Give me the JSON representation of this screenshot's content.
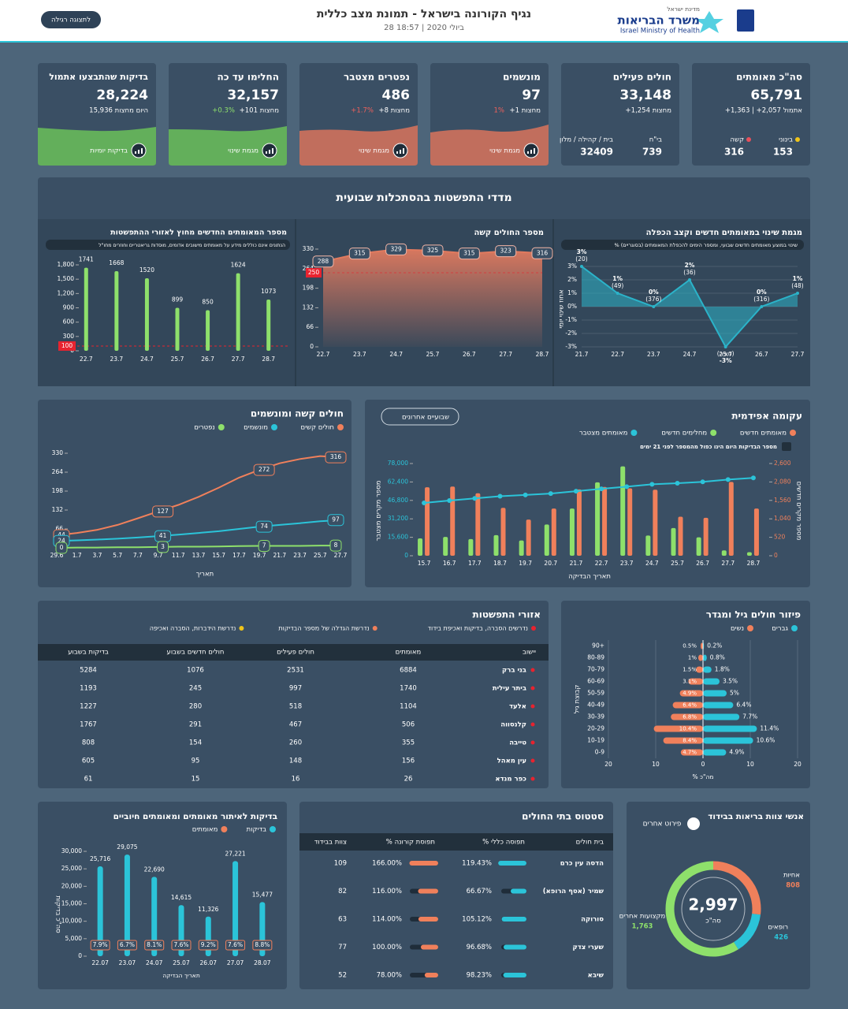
{
  "header": {
    "state": "מדינת ישראל",
    "ministry": "משרד הבריאות",
    "ministry_en": "Israel Ministry of Health",
    "title": "נגיף הקורונה בישראל - תמונת מצב כללית",
    "subtitle": "28 ביולי 2020 | 18:57",
    "button": "לתצוגה רגילה"
  },
  "kpis": [
    {
      "title": "סה\"כ מאומתים",
      "value": "65,791",
      "delta": "+1,363 | +2,057 אתמול",
      "items": [
        {
          "label": "בינוני",
          "value": "153",
          "color": "#f0c419"
        },
        {
          "label": "קשה",
          "value": "316",
          "color": "#e8505b"
        }
      ]
    },
    {
      "title": "חולים פעילים",
      "value": "33,148",
      "delta": "+1,254 מחצות",
      "items": [
        {
          "label": "בי\"ח",
          "value": "739"
        },
        {
          "label": "בית / קהילה / מלון",
          "value": "32409"
        }
      ]
    },
    {
      "title": "מונשמים",
      "value": "97",
      "delta": "+1 מחצות",
      "pct": "1%",
      "pct_color": "#f0605b",
      "button": "מגמת שינוי",
      "spark": "#d9735c"
    },
    {
      "title": "נפטרים מצטבר",
      "value": "486",
      "delta": "+8 מחצות",
      "pct": "+1.7%",
      "pct_color": "#f0605b",
      "button": "מגמת שינוי",
      "spark": "#d9735c"
    },
    {
      "title": "החלימו עד כה",
      "value": "32,157",
      "delta": "+101 מחצות",
      "pct": "+0.3%",
      "pct_color": "#8ee06b",
      "button": "מגמת שינוי",
      "spark": "#6bbf59"
    },
    {
      "title": "בדיקות שהתבצעו אתמול",
      "value": "28,224",
      "delta": "15,936 היום מחצות",
      "button": "בדיקות יומיות",
      "spark": "#6bbf59"
    }
  ],
  "spread_title": "מדדי התפשטות בהסתכלות שבועית",
  "chart_data": [
    {
      "type": "area",
      "title": "מגמת שינוי במאומתים חדשים וקצב הכפלה",
      "note": "% שינוי במוצע מאומתים חדשים שבועי, ומספר הימים להכפלת המאומתים (בסוגריים)",
      "y_label": "אחוז שינוי יומי",
      "categories": [
        "21.7",
        "22.7",
        "23.7",
        "24.7",
        "25.7",
        "26.7",
        "27.7"
      ],
      "values": [
        3,
        1,
        0,
        2,
        -3,
        0,
        1
      ],
      "value_labels": [
        "3%",
        "1%",
        "0%",
        "2%",
        "-3%",
        "0%",
        "1%"
      ],
      "doubling": [
        "(20)",
        "(49)",
        "(376)",
        "(36)",
        "(חציה)",
        "(316)",
        "(48)"
      ],
      "color": "#2bb3c9",
      "ylim": [
        -3,
        3
      ],
      "yticks": [
        {
          "value": -3,
          "label": "-3%"
        },
        {
          "value": -2,
          "label": "-2%"
        },
        {
          "value": -1,
          "label": "-1%"
        },
        {
          "value": 0,
          "label": "0%"
        },
        {
          "value": 1,
          "label": "1%"
        },
        {
          "value": 2,
          "label": "2%"
        },
        {
          "value": 3,
          "label": "3%"
        }
      ]
    },
    {
      "type": "area",
      "title": "מספר החולים קשה",
      "categories": [
        "22.7",
        "23.7",
        "24.7",
        "25.7",
        "26.7",
        "27.7",
        "28.7"
      ],
      "values": [
        288,
        315,
        329,
        325,
        315,
        323,
        316
      ],
      "color": "#e07a5f",
      "ylim": [
        0,
        330
      ],
      "yticks": [
        0,
        66,
        132,
        198,
        264,
        330
      ],
      "threshold": 250
    },
    {
      "type": "bar",
      "title": "מספר המאומתים החדשים מחוץ לאזורי ההתפשטות",
      "note": "הנתונים אינם כוללים מידע על מאומתים מישובים אדומים, מוסדות גריאטריים וחוזרים מחו\"ל",
      "categories": [
        "22.7",
        "23.7",
        "24.7",
        "25.7",
        "26.7",
        "27.7",
        "28.7"
      ],
      "values": [
        1741,
        1668,
        1520,
        899,
        850,
        1624,
        1073
      ],
      "color": "#8ee06b",
      "ylim": [
        0,
        1800
      ],
      "yticks": [
        0,
        300,
        600,
        900,
        {
          "value": 1200,
          "label": "1,200"
        },
        {
          "value": 1500,
          "label": "1,500"
        },
        {
          "value": 1800,
          "label": "1,800"
        }
      ],
      "threshold": 100
    },
    {
      "type": "line",
      "title": "חולים קשה ומונשמים",
      "x_label": "תאריך",
      "categories": [
        "29.6",
        "1.7",
        "3.7",
        "5.7",
        "7.7",
        "9.7",
        "11.7",
        "13.7",
        "15.7",
        "17.7",
        "19.7",
        "21.7",
        "23.7",
        "25.7",
        "27.7"
      ],
      "series": [
        {
          "name": "חולים קשים",
          "color": "#f0805b",
          "values": [
            44,
            52,
            63,
            80,
            103,
            127,
            150,
            178,
            210,
            245,
            272,
            295,
            310,
            320,
            316
          ]
        },
        {
          "name": "מונשמים",
          "color": "#2bc4d9",
          "values": [
            24,
            26,
            29,
            32,
            36,
            41,
            46,
            52,
            58,
            66,
            74,
            80,
            86,
            93,
            97
          ]
        },
        {
          "name": "נפטרים",
          "color": "#8ee06b",
          "values": [
            0,
            1,
            1,
            2,
            2,
            3,
            4,
            4,
            5,
            6,
            7,
            7,
            7,
            8,
            8
          ]
        }
      ],
      "ylim": [
        0,
        330
      ],
      "yticks": [
        0,
        66,
        132,
        198,
        264,
        330
      ]
    },
    {
      "type": "combo",
      "title": "עקומה אפידמית",
      "dropdown": "שבועיים אחרונים",
      "note": "מספר הבדיקות היום הינו כפול מהמספר לפני 21 ימים",
      "x_label": "תאריך הבדיקה",
      "y_label": "מספר מקרים מצטבר",
      "y2_label": "מספר מקרים חדשים",
      "categories": [
        "15.7",
        "16.7",
        "17.7",
        "18.7",
        "19.7",
        "20.7",
        "21.7",
        "22.7",
        "23.7",
        "24.7",
        "25.7",
        "26.7",
        "27.7",
        "28.7"
      ],
      "series": [
        {
          "name": "מאומתים חדשים",
          "color": "#f0805b",
          "axis": "y2",
          "values": [
            1930,
            1950,
            1760,
            1350,
            1020,
            1330,
            1870,
            1940,
            1900,
            1860,
            1100,
            1070,
            2080,
            1330
          ]
        },
        {
          "name": "מחלימים חדשים",
          "color": "#8ee06b",
          "axis": "y2",
          "values": [
            490,
            530,
            470,
            580,
            430,
            880,
            1330,
            2070,
            2520,
            570,
            780,
            520,
            150,
            100
          ]
        },
        {
          "name": "מאומתים מצטבר",
          "color": "#2bc4d9",
          "values": [
            44700,
            46700,
            48500,
            50300,
            51400,
            52600,
            54600,
            56600,
            58400,
            60400,
            61300,
            62500,
            64400,
            65800
          ]
        }
      ],
      "ylim": [
        0,
        78000
      ],
      "yticks": [
        0,
        {
          "value": 15600,
          "label": "15,600"
        },
        {
          "value": 31200,
          "label": "31,200"
        },
        {
          "value": 46800,
          "label": "46,800"
        },
        {
          "value": 62400,
          "label": "62,400"
        },
        {
          "value": 78000,
          "label": "78,000"
        }
      ],
      "y2lim": [
        0,
        2600
      ],
      "y2ticks": [
        0,
        520,
        {
          "value": 1040,
          "label": "1,040"
        },
        {
          "value": 1560,
          "label": "1,560"
        },
        {
          "value": 2080,
          "label": "2,080"
        },
        {
          "value": 2600,
          "label": "2,600"
        }
      ]
    },
    {
      "type": "butterfly",
      "title": "פיזור חולים גיל ומגדר",
      "x_label": "% מה\"כ",
      "y_label": "קבוצת גיל",
      "categories": [
        "0-9",
        "10-19",
        "20-29",
        "30-39",
        "40-49",
        "50-59",
        "60-69",
        "70-79",
        "80-89",
        "90+"
      ],
      "series": [
        {
          "name": "גברים",
          "color": "#2bc4d9",
          "values": [
            4.9,
            10.6,
            11.4,
            7.7,
            6.4,
            5,
            3.5,
            1.8,
            0.8,
            0.2
          ],
          "value_labels": [
            "4.9%",
            "10.6%",
            "11.4%",
            "7.7%",
            "6.4%",
            "5%",
            "3.5%",
            "1.8%",
            "0.8%",
            "0.2%"
          ]
        },
        {
          "name": "נשים",
          "color": "#f0805b",
          "values": [
            4.7,
            8.4,
            10.4,
            6.8,
            6.4,
            4.9,
            3.1,
            1.5,
            1,
            0.5
          ],
          "value_labels": [
            "4.7%",
            "8.4%",
            "10.4%",
            "6.8%",
            "6.4%",
            "4.9%",
            "3.1%",
            "1.5%",
            "1%",
            "0.5%"
          ]
        }
      ],
      "xlim": [
        -20,
        20
      ],
      "xticks": [
        {
          "value": -20,
          "label": "20"
        },
        {
          "value": -10,
          "label": "10"
        },
        0,
        10,
        20
      ]
    },
    {
      "type": "bar",
      "title": "בדיקות לאיתור מאומתים ומאומתים חיוביים",
      "x_label": "תאריך הבדיקה",
      "y_label": "סה\"כ בדיקות",
      "categories": [
        "22.07",
        "23.07",
        "24.07",
        "25.07",
        "26.07",
        "27.07",
        "28.07"
      ],
      "series": [
        {
          "name": "בדיקות",
          "color": "#2bc4d9",
          "values": [
            25716,
            29075,
            22690,
            14615,
            11326,
            27221,
            15477
          ],
          "value_labels": [
            "25,716",
            "29,075",
            "22,690",
            "14,615",
            "11,326",
            "27,221",
            "15,477"
          ]
        },
        {
          "name": "מאומתים",
          "color": "#f0805b",
          "values": [
            7.9,
            6.7,
            8.1,
            7.6,
            9.2,
            7.6,
            8.8
          ],
          "value_labels": [
            "7.9%",
            "6.7%",
            "8.1%",
            "7.6%",
            "9.2%",
            "7.6%",
            "8.8%"
          ]
        }
      ],
      "ylim": [
        0,
        30000
      ],
      "yticks": [
        0,
        {
          "value": 5000,
          "label": "5,000"
        },
        {
          "value": 10000,
          "label": "10,000"
        },
        {
          "value": 15000,
          "label": "15,000"
        },
        {
          "value": 20000,
          "label": "20,000"
        },
        {
          "value": 25000,
          "label": "25,000"
        },
        {
          "value": 30000,
          "label": "30,000"
        }
      ]
    },
    {
      "type": "pie",
      "title": "אנשי צוות בריאות בבידוד",
      "total": "2,997",
      "total_label": "סה\"כ",
      "button": "פירוט אחרים",
      "categories": [
        "אחיות",
        "רופאים",
        "מקצועות אחרים"
      ],
      "values": [
        808,
        426,
        1763
      ],
      "value_labels": [
        "808",
        "426",
        "1,763"
      ],
      "colors": [
        "#f0805b",
        "#2bc4d9",
        "#8ee06b"
      ]
    }
  ],
  "spread_table": {
    "title": "אזורי התפשטות",
    "legend": [
      {
        "label": "נדרשים הסברה, בדיקות ואכיפת בידוד",
        "color": "#e8232f"
      },
      {
        "label": "נדרשת הגדלה של מספר הבדיקות",
        "color": "#f0805b"
      },
      {
        "label": "נדרשת הידברות, הסברה ואכיפה",
        "color": "#f0c419"
      }
    ],
    "columns": [
      "יישוב",
      "מאומתים",
      "חולים פעילים",
      "חולים חדשים בשבוע",
      "בדיקות בשבוע"
    ],
    "rows": [
      [
        "בני ברק",
        6884,
        2531,
        1076,
        5284
      ],
      [
        "ביתר עילית",
        1740,
        997,
        245,
        1193
      ],
      [
        "אלעד",
        1104,
        518,
        280,
        1227
      ],
      [
        "קלנסווה",
        506,
        467,
        291,
        1767
      ],
      [
        "טייבה",
        355,
        260,
        154,
        808
      ],
      [
        "עין מאהל",
        156,
        148,
        95,
        605
      ],
      [
        "כפר מנדא",
        26,
        16,
        15,
        61
      ]
    ]
  },
  "hospital_table": {
    "title": "סטטוס בתי החולים",
    "columns": [
      "בית חולים",
      "% תפוסה כללי",
      "% תפוסת קורונה",
      "צוות בבידוד"
    ],
    "rows": [
      {
        "name": "הדסה עין כרם",
        "general": 119.43,
        "general_label": "119.43%",
        "corona": 166,
        "corona_label": "166.00%",
        "staff": 109
      },
      {
        "name": "שמיר (אסף הרופא)",
        "general": 66.67,
        "general_label": "66.67%",
        "corona": 116,
        "corona_label": "116.00%",
        "staff": 82
      },
      {
        "name": "סורוקה",
        "general": 105.12,
        "general_label": "105.12%",
        "corona": 114,
        "corona_label": "114.00%",
        "staff": 63
      },
      {
        "name": "שערי צדק",
        "general": 96.68,
        "general_label": "96.68%",
        "corona": 100,
        "corona_label": "100.00%",
        "staff": 77
      },
      {
        "name": "שיבא",
        "general": 98.23,
        "general_label": "98.23%",
        "corona": 78,
        "corona_label": "78.00%",
        "staff": 52
      }
    ]
  }
}
